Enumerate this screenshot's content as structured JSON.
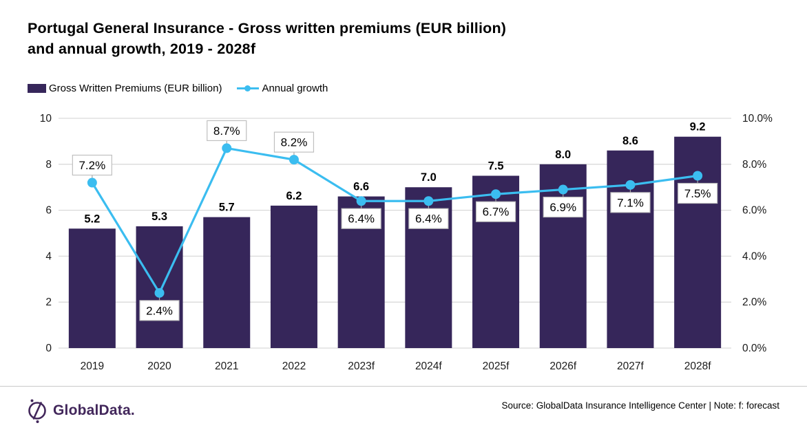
{
  "title": "Portugal General Insurance - Gross written premiums (EUR billion)\nand annual growth, 2019 - 2028f",
  "legend": {
    "bar_label": "Gross Written Premiums (EUR billion)",
    "line_label": "Annual growth"
  },
  "footer": {
    "logo_text": "GlobalData.",
    "source_text": "Source: GlobalData Insurance Intelligence Center | Note: f: forecast"
  },
  "colors": {
    "bar": "#36265A",
    "line": "#3BBDF0",
    "gridline": "#D9D9D9",
    "axis_text": "#1a1a1a",
    "label_box_border": "#BFBFBF",
    "label_box_fill": "#FFFFFF",
    "connector": "#A6A6A6",
    "logo_purple": "#42275B",
    "title_text": "#000000"
  },
  "chart_data": {
    "type": "bar",
    "subtype": "combo-bar-line",
    "title": "Portugal General Insurance - Gross written premiums (EUR billion) and annual growth, 2019 - 2028f",
    "categories": [
      "2019",
      "2020",
      "2021",
      "2022",
      "2023f",
      "2024f",
      "2025f",
      "2026f",
      "2027f",
      "2028f"
    ],
    "series": [
      {
        "name": "Gross Written Premiums (EUR billion)",
        "type": "bar",
        "axis": "left",
        "values": [
          5.2,
          5.3,
          5.7,
          6.2,
          6.6,
          7.0,
          7.5,
          8.0,
          8.6,
          9.2
        ]
      },
      {
        "name": "Annual growth",
        "type": "line",
        "axis": "right",
        "unit": "%",
        "values": [
          7.2,
          2.4,
          8.7,
          8.2,
          6.4,
          6.4,
          6.7,
          6.9,
          7.1,
          7.5
        ],
        "label_side": [
          "above",
          "below",
          "above",
          "above",
          "below",
          "below",
          "below",
          "below",
          "below",
          "below"
        ]
      }
    ],
    "left_axis": {
      "min": 0,
      "max": 10,
      "step": 2,
      "ticks": [
        "0",
        "2",
        "4",
        "6",
        "8",
        "10"
      ]
    },
    "right_axis": {
      "min": 0,
      "max": 10,
      "step": 2,
      "ticks": [
        "0.0%",
        "2.0%",
        "4.0%",
        "6.0%",
        "8.0%",
        "10.0%"
      ]
    },
    "grid": true,
    "legend_position": "top-left",
    "xlabel": "",
    "ylabel_left": "",
    "ylabel_right": ""
  }
}
